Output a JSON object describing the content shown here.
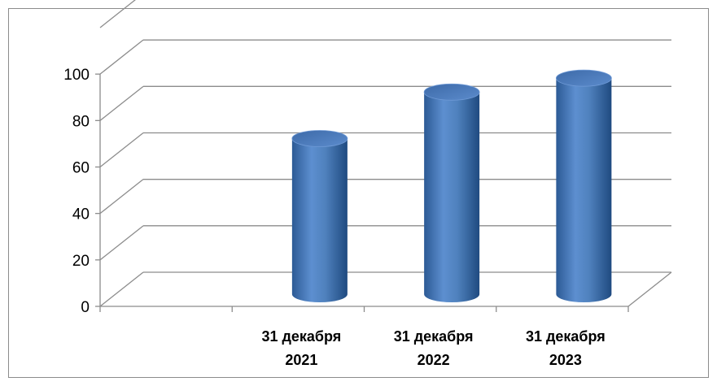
{
  "chart_data": {
    "type": "bar",
    "style": "3d-cylinder",
    "categories": [
      "",
      "31 декабря 2021",
      "31 декабря 2022",
      "31 декабря 2023"
    ],
    "category_lines": [
      [],
      [
        "31 декабря",
        "2021"
      ],
      [
        "31 декабря",
        "2022"
      ],
      [
        "31 декабря",
        "2023"
      ]
    ],
    "values": [
      null,
      67,
      87,
      93
    ],
    "ylim": [
      0,
      120
    ],
    "yticks": [
      0,
      20,
      40,
      60,
      80,
      100
    ],
    "grid": true,
    "legend": "none",
    "colors": {
      "bar": "#4f81bd",
      "bar_dark": "#2c5a95",
      "bar_top": "#4a7bc0",
      "grid": "#8c8c8c"
    }
  }
}
